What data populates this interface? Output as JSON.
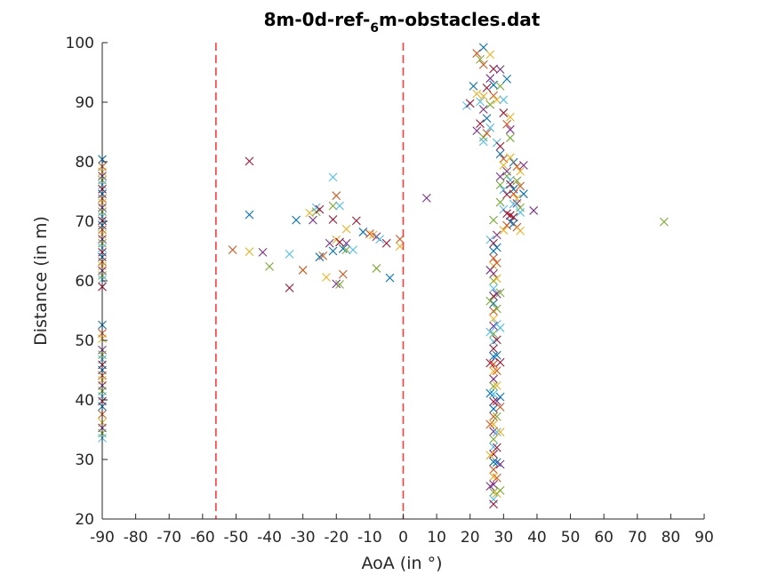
{
  "chart_data": {
    "type": "scatter",
    "title": "8m-0d-ref-",
    "title_subscript": "6",
    "title_suffix": "m-obstacles.dat",
    "xlabel": "AoA (in °)",
    "ylabel": "Distance (in m)",
    "xlim": [
      -90,
      90
    ],
    "ylim": [
      20,
      100
    ],
    "xticks": [
      -90,
      -80,
      -70,
      -60,
      -50,
      -40,
      -30,
      -20,
      -10,
      0,
      10,
      20,
      30,
      40,
      50,
      60,
      70,
      80,
      90
    ],
    "yticks": [
      20,
      30,
      40,
      50,
      60,
      70,
      80,
      90,
      100
    ],
    "grid": false,
    "marker": "x",
    "reference_lines": [
      {
        "x": -56,
        "color": "#ff3b3b",
        "style": "dashed"
      },
      {
        "x": 0,
        "color": "#ff3b3b",
        "style": "dashed"
      }
    ],
    "colors": [
      "#0072bd",
      "#d95319",
      "#edb120",
      "#7e2f8e",
      "#77ac30",
      "#4dbeee",
      "#a2142f"
    ],
    "points": [
      [
        -90,
        80.4
      ],
      [
        -90,
        79.2
      ],
      [
        -90,
        78.3
      ],
      [
        -90,
        77.6
      ],
      [
        -90,
        76.9
      ],
      [
        -90,
        76.1
      ],
      [
        -90,
        75.4
      ],
      [
        -90,
        74.6
      ],
      [
        -90,
        73.8
      ],
      [
        -90,
        73.1
      ],
      [
        -90,
        72.3
      ],
      [
        -90,
        71.6
      ],
      [
        -90,
        70.8
      ],
      [
        -90,
        70.1
      ],
      [
        -90,
        69.3
      ],
      [
        -90,
        68.6
      ],
      [
        -90,
        67.8
      ],
      [
        -90,
        67.0
      ],
      [
        -90,
        66.3
      ],
      [
        -90,
        65.5
      ],
      [
        -90,
        64.8
      ],
      [
        -90,
        64.0
      ],
      [
        -90,
        63.2
      ],
      [
        -90,
        62.5
      ],
      [
        -90,
        61.7
      ],
      [
        -90,
        60.9
      ],
      [
        -90,
        60.2
      ],
      [
        -90,
        59.0
      ],
      [
        -90,
        52.6
      ],
      [
        -90,
        51.2
      ],
      [
        -90,
        50.3
      ],
      [
        -90,
        48.4
      ],
      [
        -90,
        47.6
      ],
      [
        -90,
        46.8
      ],
      [
        -90,
        45.9
      ],
      [
        -90,
        45.0
      ],
      [
        -90,
        44.1
      ],
      [
        -90,
        43.3
      ],
      [
        -90,
        42.4
      ],
      [
        -90,
        41.5
      ],
      [
        -90,
        40.6
      ],
      [
        -90,
        39.8
      ],
      [
        -90,
        38.9
      ],
      [
        -90,
        37.6
      ],
      [
        -90,
        36.2
      ],
      [
        -90,
        35.3
      ],
      [
        -90,
        34.4
      ],
      [
        -90,
        33.6
      ],
      [
        -46,
        80.1
      ],
      [
        -46,
        71.1
      ],
      [
        -51,
        65.2
      ],
      [
        -46,
        64.9
      ],
      [
        -42,
        64.8
      ],
      [
        -40,
        62.4
      ],
      [
        -34,
        64.5
      ],
      [
        -34,
        58.8
      ],
      [
        -32,
        70.2
      ],
      [
        -30,
        61.8
      ],
      [
        -28,
        71.4
      ],
      [
        -27,
        70.2
      ],
      [
        -26,
        71.6
      ],
      [
        -26,
        72.3
      ],
      [
        -25,
        72.0
      ],
      [
        -25,
        64.0
      ],
      [
        -24,
        64.2
      ],
      [
        -23,
        60.6
      ],
      [
        -22,
        66.3
      ],
      [
        -21,
        72.6
      ],
      [
        -21,
        77.4
      ],
      [
        -21,
        70.3
      ],
      [
        -21,
        65.0
      ],
      [
        -20,
        74.3
      ],
      [
        -20,
        66.9
      ],
      [
        -20,
        59.5
      ],
      [
        -19,
        59.4
      ],
      [
        -19,
        72.6
      ],
      [
        -19,
        66.5
      ],
      [
        -18,
        65.4
      ],
      [
        -18,
        61.1
      ],
      [
        -17,
        68.7
      ],
      [
        -17,
        66.3
      ],
      [
        -17,
        65.2
      ],
      [
        -15,
        65.2
      ],
      [
        -14,
        70.1
      ],
      [
        -12,
        68.2
      ],
      [
        -10,
        67.9
      ],
      [
        -9,
        67.7
      ],
      [
        -8,
        67.4
      ],
      [
        -8,
        62.1
      ],
      [
        -7,
        67.0
      ],
      [
        -5,
        66.3
      ],
      [
        -4,
        60.5
      ],
      [
        -1,
        67.0
      ],
      [
        -1,
        65.8
      ],
      [
        7,
        73.9
      ],
      [
        78,
        69.9
      ],
      [
        19,
        89.4
      ],
      [
        20,
        89.8
      ],
      [
        21,
        92.7
      ],
      [
        22,
        98.2
      ],
      [
        22,
        91.4
      ],
      [
        22,
        85.2
      ],
      [
        23,
        97.2
      ],
      [
        23,
        90.1
      ],
      [
        23,
        86.4
      ],
      [
        24,
        99.2
      ],
      [
        24,
        96.3
      ],
      [
        24,
        91.0
      ],
      [
        24,
        88.8
      ],
      [
        24,
        84.1
      ],
      [
        24,
        83.4
      ],
      [
        25,
        92.4
      ],
      [
        25,
        87.3
      ],
      [
        25,
        84.8
      ],
      [
        26,
        98.0
      ],
      [
        26,
        94.0
      ],
      [
        26,
        89.6
      ],
      [
        26,
        85.7
      ],
      [
        27,
        95.6
      ],
      [
        27,
        92.9
      ],
      [
        27,
        91.1
      ],
      [
        28,
        90.4
      ],
      [
        29,
        95.5
      ],
      [
        29,
        92.7
      ],
      [
        30,
        90.4
      ],
      [
        30,
        88.2
      ],
      [
        31,
        93.9
      ],
      [
        31,
        86.3
      ],
      [
        32,
        87.5
      ],
      [
        32,
        85.4
      ],
      [
        32,
        84.0
      ],
      [
        28,
        83.2
      ],
      [
        29,
        82.6
      ],
      [
        29,
        81.3
      ],
      [
        30,
        80.5
      ],
      [
        30,
        79.4
      ],
      [
        31,
        78.4
      ],
      [
        31,
        77.6
      ],
      [
        32,
        76.9
      ],
      [
        32,
        76.2
      ],
      [
        33,
        75.4
      ],
      [
        33,
        74.6
      ],
      [
        34,
        73.8
      ],
      [
        34,
        73.0
      ],
      [
        35,
        72.3
      ],
      [
        35,
        71.5
      ],
      [
        33,
        70.7
      ],
      [
        32,
        69.9
      ],
      [
        31,
        69.3
      ],
      [
        30,
        68.5
      ],
      [
        29,
        77.5
      ],
      [
        29,
        76.1
      ],
      [
        30,
        75.3
      ],
      [
        31,
        74.5
      ],
      [
        33,
        79.9
      ],
      [
        34,
        79.2
      ],
      [
        35,
        78.4
      ],
      [
        36,
        79.4
      ],
      [
        34,
        76.8
      ],
      [
        33,
        72.9
      ],
      [
        32,
        71.0
      ],
      [
        33,
        69.6
      ],
      [
        34,
        69.0
      ],
      [
        35,
        68.4
      ],
      [
        39,
        71.8
      ],
      [
        29,
        73.2
      ],
      [
        30,
        72.0
      ],
      [
        31,
        71.3
      ],
      [
        36,
        74.6
      ],
      [
        35,
        75.9
      ],
      [
        32,
        80.7
      ],
      [
        28,
        67.7
      ],
      [
        27,
        70.2
      ],
      [
        26,
        66.9
      ],
      [
        27,
        66.3
      ],
      [
        27,
        65.0
      ],
      [
        27,
        63.8
      ],
      [
        27,
        62.5
      ],
      [
        27,
        61.2
      ],
      [
        27,
        60.0
      ],
      [
        27,
        58.7
      ],
      [
        27,
        57.4
      ],
      [
        27,
        56.2
      ],
      [
        27,
        54.9
      ],
      [
        27,
        53.6
      ],
      [
        27,
        52.4
      ],
      [
        27,
        51.1
      ],
      [
        27,
        49.8
      ],
      [
        27,
        48.6
      ],
      [
        27,
        47.3
      ],
      [
        27,
        46.0
      ],
      [
        27,
        44.8
      ],
      [
        27,
        43.5
      ],
      [
        27,
        42.3
      ],
      [
        27,
        41.0
      ],
      [
        27,
        39.7
      ],
      [
        27,
        38.5
      ],
      [
        27,
        37.2
      ],
      [
        27,
        35.9
      ],
      [
        27,
        34.7
      ],
      [
        27,
        33.4
      ],
      [
        27,
        32.1
      ],
      [
        27,
        30.9
      ],
      [
        27,
        29.6
      ],
      [
        27,
        28.3
      ],
      [
        27,
        27.1
      ],
      [
        27,
        25.8
      ],
      [
        27,
        24.5
      ],
      [
        27,
        23.3
      ],
      [
        27,
        22.5
      ],
      [
        28,
        65.6
      ],
      [
        28,
        63.0
      ],
      [
        28,
        60.4
      ],
      [
        28,
        57.8
      ],
      [
        28,
        55.3
      ],
      [
        28,
        52.7
      ],
      [
        28,
        50.1
      ],
      [
        28,
        47.5
      ],
      [
        28,
        44.9
      ],
      [
        28,
        42.4
      ],
      [
        28,
        39.8
      ],
      [
        28,
        37.2
      ],
      [
        28,
        34.6
      ],
      [
        28,
        32.0
      ],
      [
        28,
        29.5
      ],
      [
        28,
        26.9
      ],
      [
        28,
        24.3
      ],
      [
        26,
        61.8
      ],
      [
        26,
        56.6
      ],
      [
        26,
        51.4
      ],
      [
        26,
        46.2
      ],
      [
        26,
        41.1
      ],
      [
        26,
        35.9
      ],
      [
        26,
        30.7
      ],
      [
        26,
        25.5
      ],
      [
        29,
        58.0
      ],
      [
        29,
        52.1
      ],
      [
        29,
        46.3
      ],
      [
        29,
        40.5
      ],
      [
        29,
        38.8
      ],
      [
        29,
        34.6
      ],
      [
        29,
        29.2
      ],
      [
        29,
        24.8
      ]
    ]
  }
}
